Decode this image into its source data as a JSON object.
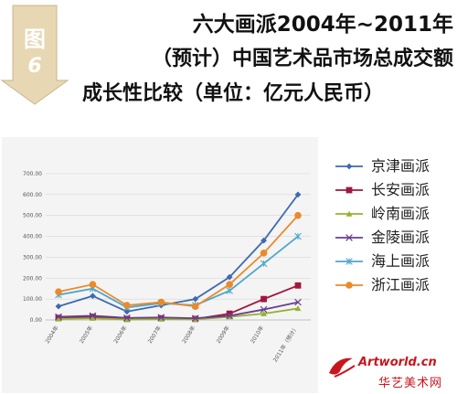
{
  "header": {
    "badge_char": "图",
    "badge_number": "6",
    "title_lines": [
      "六大画派2004年~2011年",
      "（预计）中国艺术品市场总成交额",
      "成长性比较（单位：亿元人民币）"
    ]
  },
  "colors": {
    "badge": "#e8d7b3",
    "京津画派": "#3d6ab0",
    "长安画派": "#a1173f",
    "岭南画派": "#94b331",
    "金陵画派": "#6a3d8f",
    "海上画派": "#4fa7c9",
    "浙江画派": "#ea8a2b"
  },
  "chart_data": {
    "type": "line",
    "title": "六大画派2004年~2011年（预计）中国艺术品市场总成交额成长性比较（单位：亿元人民币）",
    "categories": [
      "2004年",
      "2005年",
      "2006年",
      "2007年",
      "2008年",
      "2009年",
      "2010年",
      "2011年（预计）"
    ],
    "y_ticks": [
      "0.00",
      "100.00",
      "200.00",
      "300.00",
      "400.00",
      "500.00",
      "600.00",
      "700.00"
    ],
    "ylim": [
      0,
      700
    ],
    "grid": true,
    "legend_position": "right",
    "series": [
      {
        "name": "京津画派",
        "marker": "diamond",
        "values": [
          65,
          115,
          40,
          70,
          100,
          205,
          380,
          600
        ]
      },
      {
        "name": "长安画派",
        "marker": "square",
        "values": [
          10,
          15,
          5,
          8,
          5,
          30,
          100,
          165
        ]
      },
      {
        "name": "岭南画派",
        "marker": "triangle",
        "values": [
          5,
          8,
          2,
          4,
          3,
          15,
          30,
          55
        ]
      },
      {
        "name": "金陵画派",
        "marker": "x",
        "values": [
          15,
          20,
          10,
          12,
          8,
          20,
          50,
          85
        ]
      },
      {
        "name": "海上画派",
        "marker": "star",
        "values": [
          120,
          150,
          60,
          80,
          70,
          140,
          270,
          400
        ]
      },
      {
        "name": "浙江画派",
        "marker": "circle",
        "values": [
          135,
          170,
          70,
          85,
          65,
          170,
          320,
          500
        ]
      }
    ]
  },
  "watermark": {
    "latin": "Artworld.cn",
    "cjk": "华艺美术网"
  }
}
